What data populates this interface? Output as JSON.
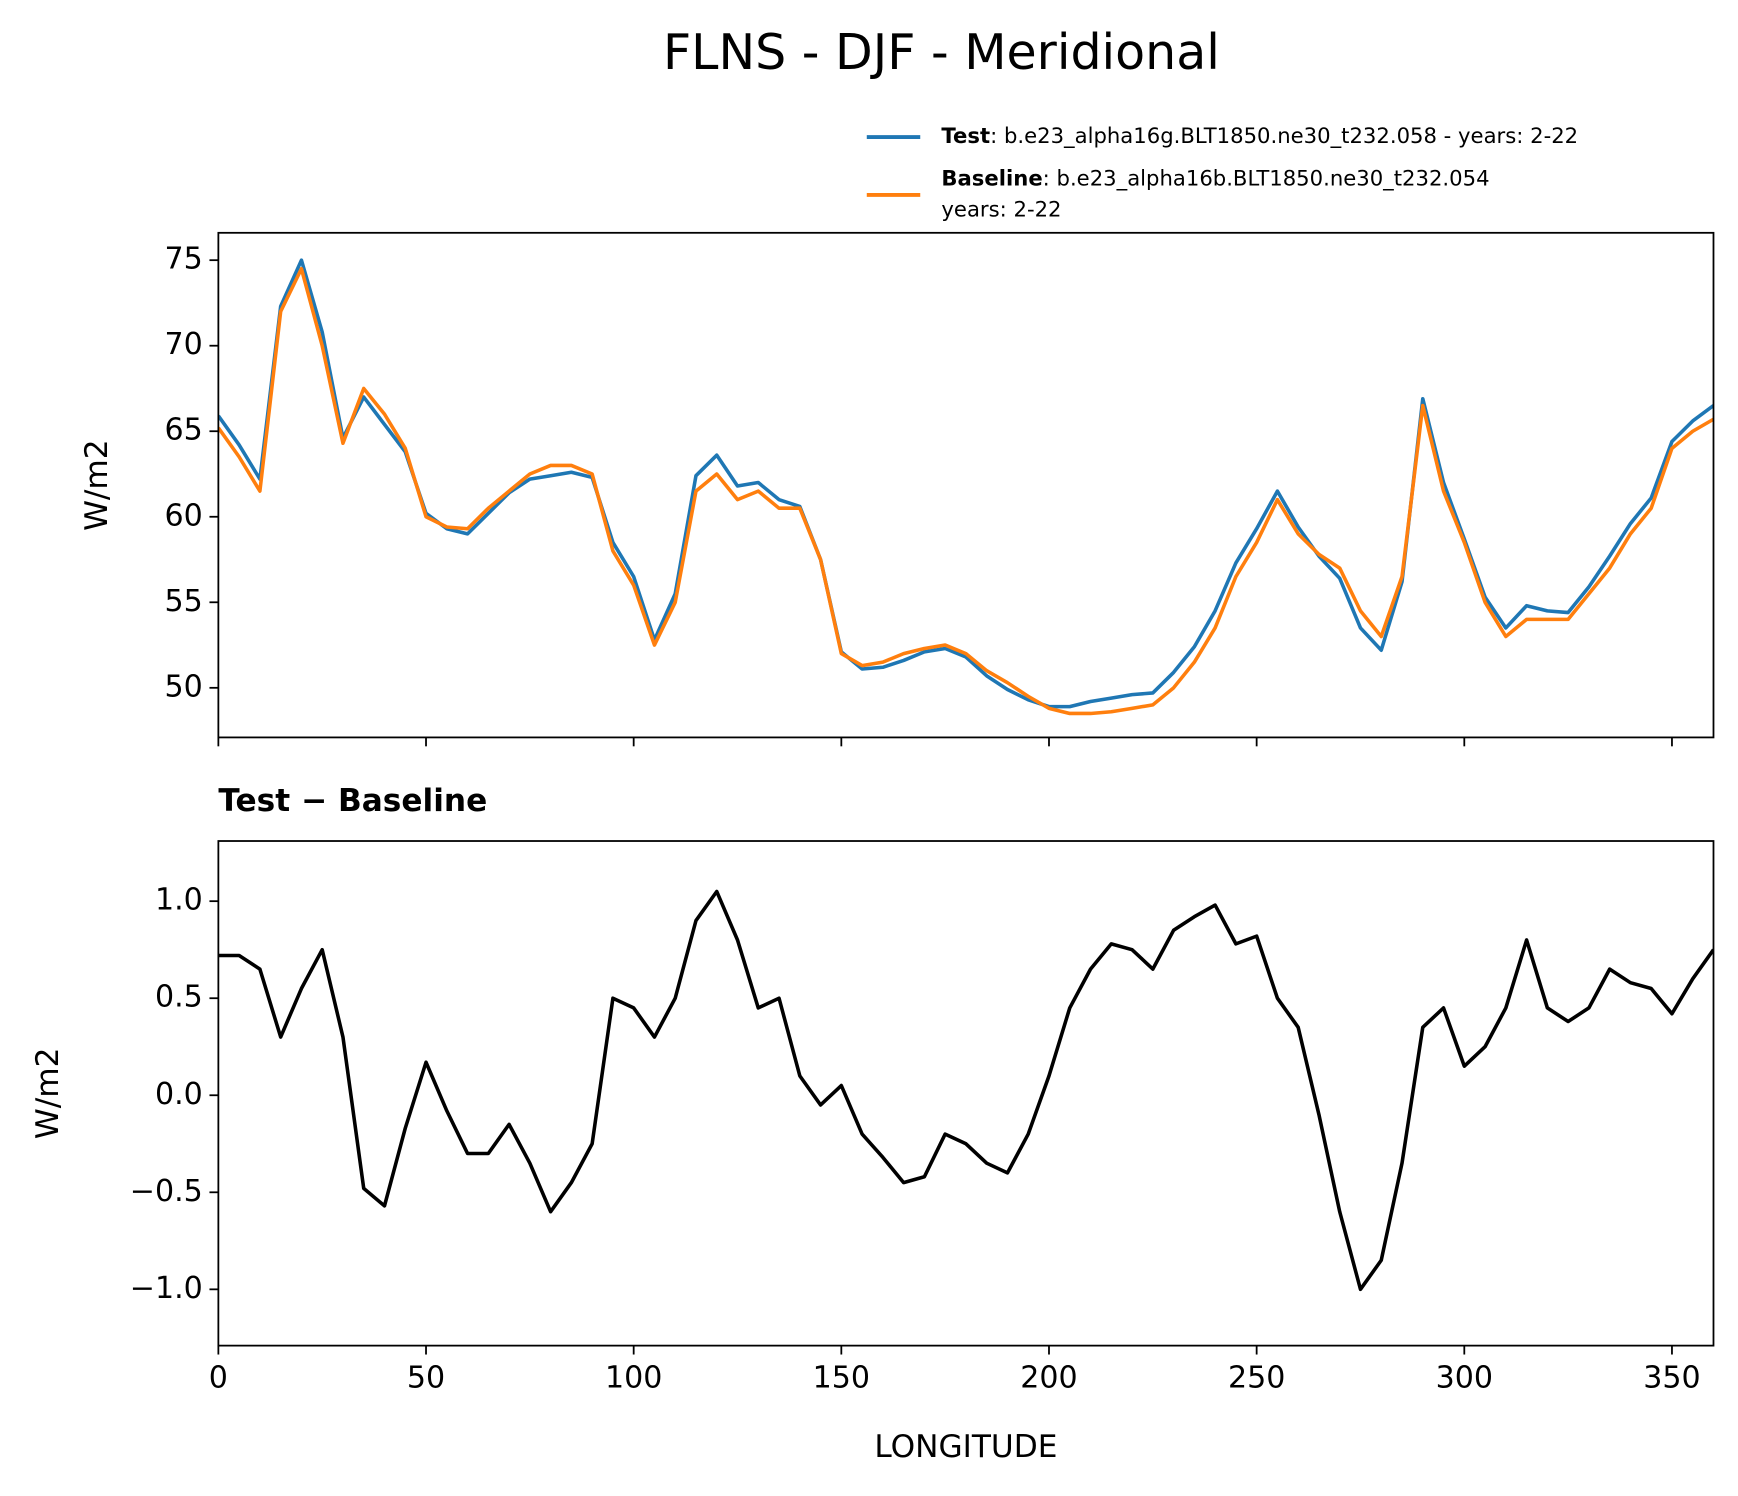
{
  "chart_data": [
    {
      "type": "line",
      "title": "FLNS - DJF - Meridional",
      "ylabel": "W/m2",
      "x": [
        0,
        5,
        10,
        15,
        20,
        25,
        30,
        35,
        40,
        45,
        50,
        55,
        60,
        65,
        70,
        75,
        80,
        85,
        90,
        95,
        100,
        105,
        110,
        115,
        120,
        125,
        130,
        135,
        140,
        145,
        150,
        155,
        160,
        165,
        170,
        175,
        180,
        185,
        190,
        195,
        200,
        205,
        210,
        215,
        220,
        225,
        230,
        235,
        240,
        245,
        250,
        255,
        260,
        265,
        270,
        275,
        280,
        285,
        290,
        295,
        300,
        305,
        310,
        315,
        320,
        325,
        330,
        335,
        340,
        345,
        350,
        355,
        360
      ],
      "series": [
        {
          "name": "Test",
          "description": [
            ": b.e23_alpha16g.BLT1850.ne30_t232.058 - years: 2-22"
          ],
          "color": "#1f77b4",
          "values": [
            65.9,
            64.2,
            62.2,
            72.3,
            75.0,
            70.8,
            64.6,
            67.0,
            65.4,
            63.8,
            60.2,
            59.3,
            59.0,
            60.2,
            61.4,
            62.2,
            62.4,
            62.6,
            62.3,
            58.5,
            56.5,
            52.8,
            55.5,
            62.4,
            63.6,
            61.8,
            62.0,
            61.0,
            60.6,
            57.5,
            52.1,
            51.1,
            51.2,
            51.6,
            52.1,
            52.3,
            51.8,
            50.7,
            49.9,
            49.3,
            48.9,
            48.9,
            49.2,
            49.4,
            49.6,
            49.7,
            50.9,
            52.4,
            54.5,
            57.3,
            59.3,
            61.5,
            59.4,
            57.7,
            56.4,
            53.5,
            52.2,
            56.2,
            66.9,
            62.0,
            58.7,
            55.3,
            53.5,
            54.8,
            54.5,
            54.4,
            55.9,
            57.7,
            59.6,
            61.1,
            64.4,
            65.6,
            66.5
          ]
        },
        {
          "name": "Baseline",
          "description": [
            ": b.e23_alpha16b.BLT1850.ne30_t232.054",
            "years: 2-22"
          ],
          "color": "#ff7f0e",
          "values": [
            65.2,
            63.5,
            61.5,
            72,
            74.5,
            70,
            64.3,
            67.5,
            66,
            64,
            60,
            59.4,
            59.3,
            60.5,
            61.5,
            62.5,
            63,
            63,
            62.5,
            58,
            56,
            52.5,
            55,
            61.5,
            62.5,
            61,
            61.5,
            60.5,
            60.5,
            57.5,
            52,
            51.3,
            51.5,
            52,
            52.3,
            52.5,
            52,
            51,
            50.3,
            49.5,
            48.8,
            48.5,
            48.5,
            48.6,
            48.8,
            49,
            50,
            51.5,
            53.5,
            56.5,
            58.5,
            61,
            59,
            57.8,
            57,
            54.5,
            53,
            56.5,
            66.5,
            61.5,
            58.5,
            55,
            53,
            54,
            54,
            54,
            55.5,
            57,
            59,
            60.5,
            64,
            65,
            65.7
          ]
        }
      ],
      "xlim": [
        0,
        360
      ],
      "xticks": [
        0,
        50,
        100,
        150,
        200,
        250,
        300,
        350
      ],
      "xtick_labels": false,
      "ylim": [
        47.1,
        76.6
      ],
      "yticks": [
        50,
        55,
        60,
        65,
        70,
        75
      ],
      "legend": "upper right"
    },
    {
      "type": "line",
      "title": "Test − Baseline",
      "ylabel": "W/m2",
      "xlabel": "LONGITUDE",
      "x": [
        0,
        5,
        10,
        15,
        20,
        25,
        30,
        35,
        40,
        45,
        50,
        55,
        60,
        65,
        70,
        75,
        80,
        85,
        90,
        95,
        100,
        105,
        110,
        115,
        120,
        125,
        130,
        135,
        140,
        145,
        150,
        155,
        160,
        165,
        170,
        175,
        180,
        185,
        190,
        195,
        200,
        205,
        210,
        215,
        220,
        225,
        230,
        235,
        240,
        245,
        250,
        255,
        260,
        265,
        270,
        275,
        280,
        285,
        290,
        295,
        300,
        305,
        310,
        315,
        320,
        325,
        330,
        335,
        340,
        345,
        350,
        355,
        360
      ],
      "series": [
        {
          "name": "Test − Baseline",
          "color": "#000000",
          "values": [
            0.72,
            0.72,
            0.65,
            0.3,
            0.55,
            0.75,
            0.3,
            -0.48,
            -0.57,
            -0.17,
            0.17,
            -0.08,
            -0.3,
            -0.3,
            -0.15,
            -0.35,
            -0.6,
            -0.45,
            -0.25,
            0.5,
            0.45,
            0.3,
            0.5,
            0.9,
            1.05,
            0.8,
            0.45,
            0.5,
            0.1,
            -0.05,
            0.05,
            -0.2,
            -0.32,
            -0.45,
            -0.42,
            -0.2,
            -0.25,
            -0.35,
            -0.4,
            -0.2,
            0.1,
            0.45,
            0.65,
            0.78,
            0.75,
            0.65,
            0.85,
            0.92,
            0.98,
            0.78,
            0.82,
            0.5,
            0.35,
            -0.1,
            -0.6,
            -1.0,
            -0.85,
            -0.35,
            0.35,
            0.45,
            0.15,
            0.25,
            0.45,
            0.8,
            0.45,
            0.38,
            0.45,
            0.65,
            0.58,
            0.55,
            0.42,
            0.6,
            0.75
          ]
        }
      ],
      "xlim": [
        0,
        360
      ],
      "xticks": [
        0,
        50,
        100,
        150,
        200,
        250,
        300,
        350
      ],
      "xtick_labels": true,
      "ylim": [
        -1.29,
        1.31
      ],
      "yticks": [
        {
          "value": -1,
          "label": "−1.0"
        },
        {
          "value": -0.5,
          "label": "−0.5"
        },
        {
          "value": 0,
          "label": "0.0"
        },
        0.5,
        {
          "value": 1,
          "label": "1.0"
        }
      ]
    }
  ]
}
